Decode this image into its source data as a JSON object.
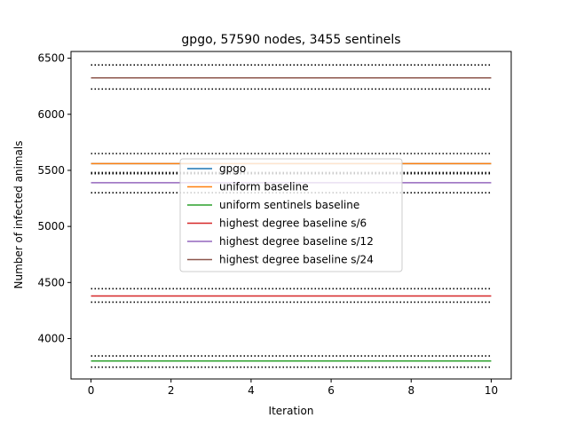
{
  "chart_data": {
    "type": "line",
    "title": "gpgo, 57590 nodes, 3455 sentinels",
    "xlabel": "Iteration",
    "ylabel": "Number of infected animals",
    "xlim": [
      -0.5,
      10.5
    ],
    "ylim": [
      3640,
      6560
    ],
    "xticks": [
      0,
      2,
      4,
      6,
      8,
      10
    ],
    "yticks": [
      4000,
      4500,
      5000,
      5500,
      6000,
      6500
    ],
    "x": [
      0,
      10
    ],
    "grid": false,
    "legend_position": "center",
    "series": [
      {
        "name": "gpgo",
        "color": "#1f77b4",
        "value": 5560
      },
      {
        "name": "uniform baseline",
        "color": "#ff7f0e",
        "value": 5560,
        "band": [
          5470,
          5650
        ]
      },
      {
        "name": "uniform sentinels baseline",
        "color": "#2ca02c",
        "value": 3800,
        "band": [
          3745,
          3845
        ]
      },
      {
        "name": "highest degree baseline s/6",
        "color": "#d62728",
        "value": 4380,
        "band": [
          4325,
          4445
        ]
      },
      {
        "name": "highest degree baseline s/12",
        "color": "#9467bd",
        "value": 5390,
        "band": [
          5300,
          5480
        ]
      },
      {
        "name": "highest degree baseline s/24",
        "color": "#8c564b",
        "value": 6325,
        "band": [
          6225,
          6440
        ]
      }
    ]
  }
}
